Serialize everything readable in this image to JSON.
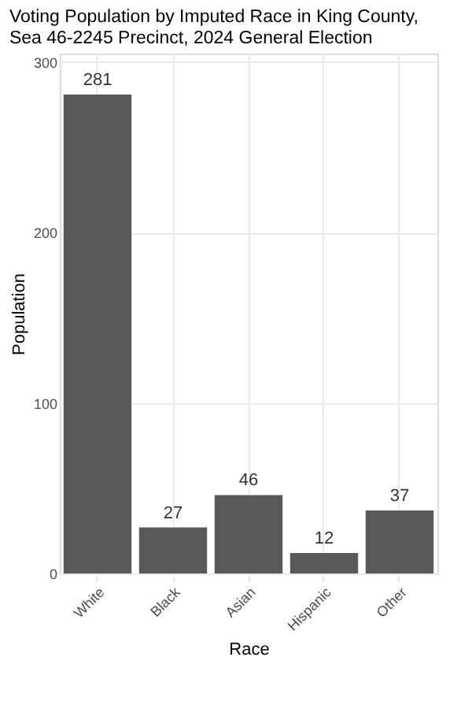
{
  "chart_data": {
    "type": "bar",
    "title": [
      "Voting Population by Imputed Race in King County,",
      "Sea 46-2245 Precinct,  2024 General Election"
    ],
    "xlabel": "Race",
    "ylabel": "Population",
    "categories": [
      "White",
      "Black",
      "Asian",
      "Hispanic",
      "Other"
    ],
    "values": [
      281,
      27,
      46,
      12,
      37
    ],
    "color": "#595959",
    "ylim": [
      0,
      305
    ],
    "yticks": [
      0,
      100,
      200,
      300
    ],
    "grid": true,
    "data_labels": true
  }
}
